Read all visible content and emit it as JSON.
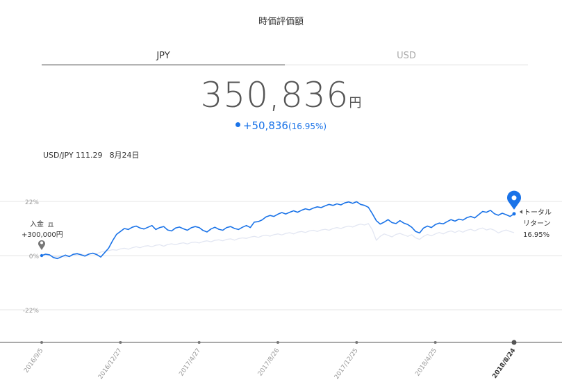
{
  "header": {
    "title": "時価評価額"
  },
  "tabs": [
    {
      "label": "JPY",
      "active": true
    },
    {
      "label": "USD",
      "active": false
    }
  ],
  "valuation": {
    "amount": "350,836",
    "unit": "円",
    "change": "+50,836",
    "change_pct": "(16.95%)"
  },
  "fx": {
    "pair": "USD/JPY 111.29",
    "date": "8月24日"
  },
  "colors": {
    "primary": "#1a73e8",
    "benchmark": "#e2e6f2",
    "grid": "#e6e6e6"
  },
  "chart_data": {
    "type": "line",
    "yticks": [
      "22%",
      "0%",
      "-22%"
    ],
    "ytick_values": [
      22,
      0,
      -22
    ],
    "ylim": [
      -36,
      28
    ],
    "xticks": [
      "2016/9/5",
      "2016/12/27",
      "2017/4/27",
      "2017/8/26",
      "2017/12/25",
      "2018/4/25",
      "2018/8/24"
    ],
    "series": [
      {
        "values": [
          0,
          0.6,
          0.3,
          -0.8,
          -1.2,
          -0.5,
          0.2,
          -0.4,
          0.5,
          0.8,
          0.3,
          -0.2,
          0.6,
          1.0,
          0.4,
          -0.6,
          1.2,
          3.0,
          6.0,
          8.6,
          9.8,
          11.0,
          10.6,
          11.5,
          12.0,
          11.2,
          10.8,
          11.5,
          12.2,
          10.6,
          11.4,
          11.8,
          10.4,
          10.0,
          11.2,
          11.6,
          10.9,
          10.3,
          11.3,
          11.8,
          11.4,
          10.2,
          9.6,
          10.8,
          11.5,
          10.7,
          10.3,
          11.4,
          11.8,
          11.0,
          10.6,
          11.5,
          12.2,
          11.4,
          13.6,
          13.8,
          14.5,
          15.7,
          16.3,
          15.9,
          16.8,
          17.5,
          16.9,
          17.6,
          18.2,
          17.6,
          18.4,
          19.0,
          18.6,
          19.3,
          19.8,
          19.5,
          20.2,
          20.8,
          20.4,
          21.0,
          20.6,
          21.4,
          21.8,
          21.2,
          21.9,
          20.8,
          20.4,
          19.6,
          17.0,
          14.2,
          12.8,
          13.6,
          14.6,
          13.4,
          13.0,
          14.2,
          13.2,
          12.6,
          11.5,
          9.8,
          9.2,
          11.2,
          12.0,
          11.4,
          12.6,
          13.2,
          12.9,
          13.8,
          14.6,
          14.0,
          14.8,
          14.4,
          15.4,
          15.9,
          15.3,
          16.6,
          17.9,
          17.6,
          18.4,
          17.0,
          16.4,
          17.2,
          16.6,
          15.9,
          16.95
        ],
        "color": "#1a73e8"
      },
      {
        "values": [
          0,
          0.2,
          0.1,
          -0.3,
          -0.5,
          -0.2,
          -0.6,
          -0.3,
          0.1,
          0.4,
          0.6,
          0.2,
          0.7,
          1.0,
          0.8,
          1.4,
          1.8,
          2.0,
          2.4,
          2.2,
          2.7,
          3.0,
          2.6,
          3.2,
          3.6,
          3.2,
          3.8,
          4.0,
          3.6,
          4.2,
          4.4,
          3.8,
          4.5,
          4.8,
          4.4,
          4.9,
          5.2,
          4.7,
          5.3,
          5.5,
          5.1,
          5.7,
          6.0,
          5.6,
          6.2,
          6.4,
          6.0,
          6.6,
          6.8,
          6.3,
          6.9,
          7.2,
          7.0,
          7.5,
          7.8,
          7.4,
          8.0,
          8.3,
          7.9,
          8.5,
          8.8,
          8.4,
          9.0,
          9.3,
          8.8,
          9.5,
          9.8,
          9.4,
          10.0,
          10.3,
          9.8,
          10.4,
          10.7,
          10.3,
          11.0,
          11.4,
          11.0,
          11.6,
          12.0,
          11.6,
          12.3,
          12.8,
          12.4,
          13.0,
          10.5,
          6.2,
          7.8,
          8.8,
          8.2,
          7.6,
          8.6,
          9.0,
          8.4,
          7.8,
          8.5,
          7.2,
          6.6,
          7.8,
          8.6,
          8.0,
          8.8,
          9.4,
          8.8,
          9.6,
          10.0,
          9.4,
          10.1,
          9.5,
          10.3,
          10.7,
          10.0,
          10.8,
          11.2,
          10.4,
          10.9,
          10.3,
          9.2,
          9.9,
          10.4,
          9.8,
          9.3
        ],
        "color": "#e2e6f2"
      }
    ],
    "annotations": {
      "deposit_label": "入金",
      "deposit_amount": "+300,000円",
      "total_return_label": "トータルリターン",
      "total_return_label_1": "トータル",
      "total_return_label_2": "リターン",
      "total_return_value": "16.95%"
    }
  }
}
